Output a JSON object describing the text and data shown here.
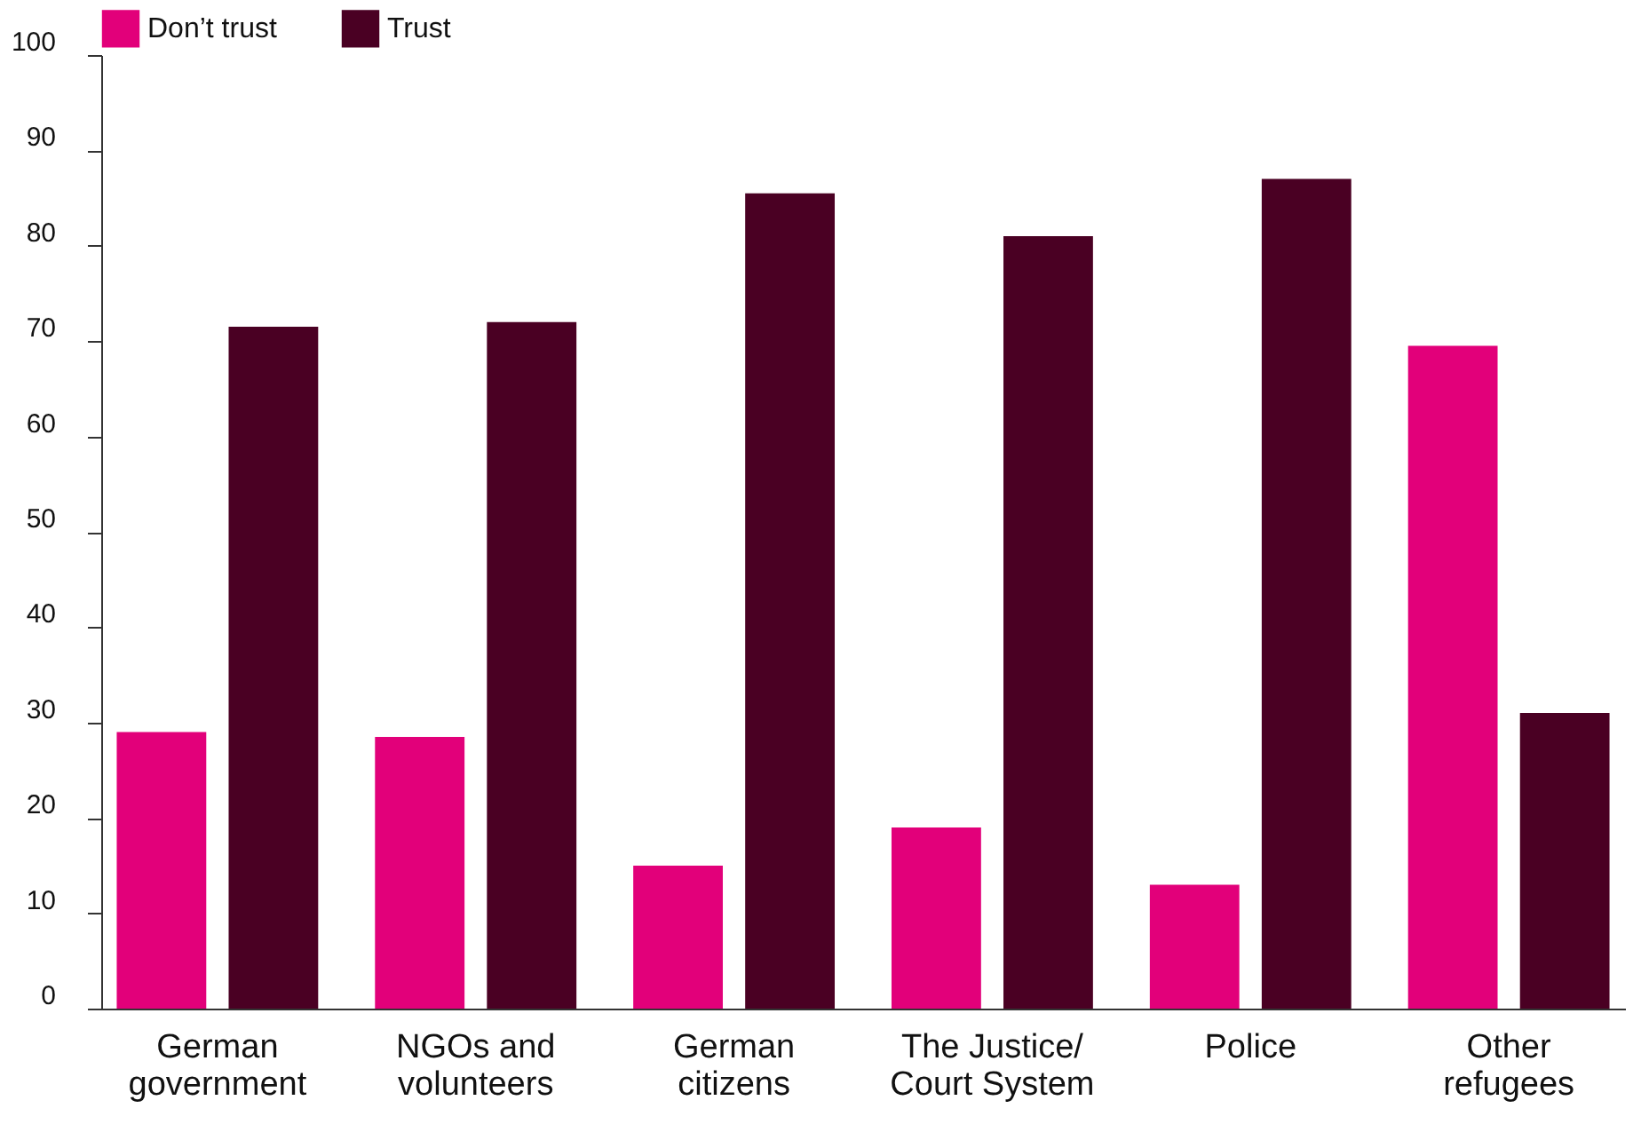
{
  "chart_data": {
    "type": "bar",
    "categories": [
      "German government",
      "NGOs and volunteers",
      "German citizens",
      "The Justice/ Court System",
      "Police",
      "Other refugees"
    ],
    "series": [
      {
        "name": "Don’t trust",
        "color": "#e2007a",
        "values": [
          29,
          28.5,
          15,
          19,
          13,
          69.5
        ]
      },
      {
        "name": "Trust",
        "color": "#4a0023",
        "values": [
          71.5,
          72,
          85.5,
          81,
          87,
          31
        ]
      }
    ],
    "ylim": [
      0,
      100
    ],
    "yticks": [
      0,
      10,
      20,
      30,
      40,
      50,
      60,
      70,
      80,
      90,
      100
    ],
    "grid": false,
    "legend": "top left"
  }
}
